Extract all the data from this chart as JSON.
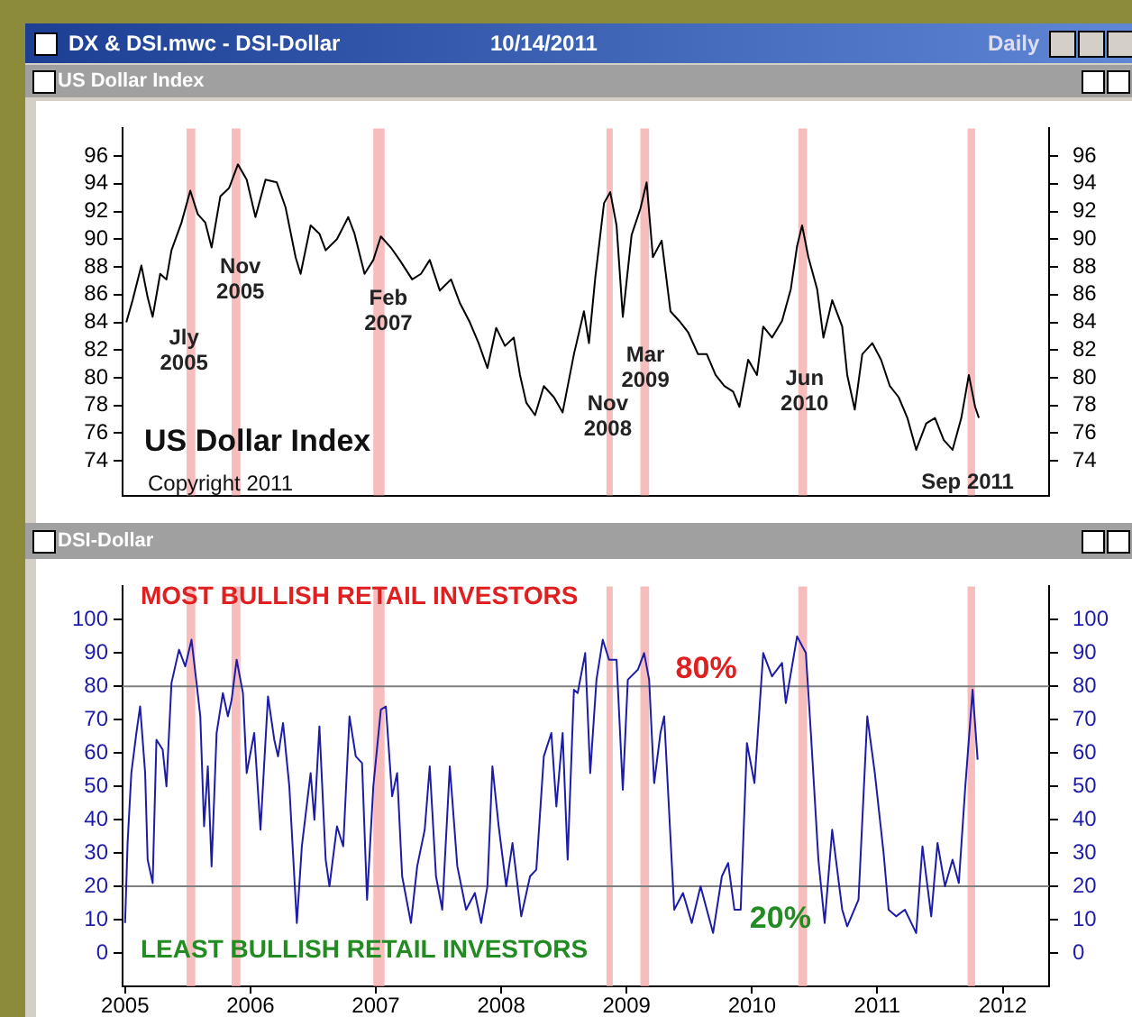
{
  "chart_data": [
    {
      "type": "line",
      "title": "DX & DSI.mwc - DSI-Dollar",
      "subtitle": "US Dollar Index",
      "tick_labels": "y",
      "xlim": [
        2004.98,
        2012.37
      ],
      "ylim": [
        71.5,
        98
      ],
      "yticks": [
        74,
        76,
        78,
        80,
        82,
        84,
        86,
        88,
        90,
        92,
        94,
        96
      ],
      "y2lim": [
        71.5,
        98
      ],
      "y2ticks": [
        74,
        76,
        78,
        80,
        82,
        84,
        86,
        88,
        90,
        92,
        94,
        96
      ],
      "bands": [
        {
          "axis": "x",
          "from": 2005.49,
          "to": 2005.56,
          "color": "#f4a7a7"
        },
        {
          "axis": "x",
          "from": 2005.85,
          "to": 2005.92,
          "color": "#f4a7a7"
        },
        {
          "axis": "x",
          "from": 2006.98,
          "to": 2007.07,
          "color": "#f4a7a7"
        },
        {
          "axis": "x",
          "from": 2008.84,
          "to": 2008.89,
          "color": "#f4a7a7"
        },
        {
          "axis": "x",
          "from": 2009.11,
          "to": 2009.18,
          "color": "#f4a7a7"
        },
        {
          "axis": "x",
          "from": 2010.37,
          "to": 2010.44,
          "color": "#f4a7a7"
        },
        {
          "axis": "x",
          "from": 2011.72,
          "to": 2011.78,
          "color": "#f4a7a7"
        }
      ],
      "annotations": [
        "10/14/2011",
        "Daily",
        "US Dollar Index",
        "Copyright 2011",
        {
          "text": "Jly\n2005",
          "x": 2005.47,
          "y": 81.9
        },
        {
          "text": "Nov\n2005",
          "x": 2005.92,
          "y": 87.1
        },
        {
          "text": "Feb\n2007",
          "x": 2007.1,
          "y": 84.8
        },
        {
          "text": "Nov\n2008",
          "x": 2008.85,
          "y": 77.2
        },
        {
          "text": "Mar\n2009",
          "x": 2009.15,
          "y": 80.7
        },
        {
          "text": "Jun\n2010",
          "x": 2010.42,
          "y": 79
        },
        {
          "text": "Sep 2011",
          "x": 2011.72,
          "y": 72.4
        }
      ],
      "series": [
        {
          "color": "#000000",
          "x": [
            2005.01,
            2005.06,
            2005.13,
            2005.18,
            2005.22,
            2005.28,
            2005.33,
            2005.37,
            2005.45,
            2005.52,
            2005.58,
            2005.64,
            2005.69,
            2005.76,
            2005.83,
            2005.9,
            2005.97,
            2006.04,
            2006.12,
            2006.21,
            2006.28,
            2006.36,
            2006.4,
            2006.48,
            2006.55,
            2006.6,
            2006.69,
            2006.78,
            2006.83,
            2006.91,
            2006.98,
            2007.04,
            2007.12,
            2007.19,
            2007.29,
            2007.36,
            2007.43,
            2007.51,
            2007.6,
            2007.67,
            2007.75,
            2007.82,
            2007.89,
            2007.96,
            2008.03,
            2008.1,
            2008.15,
            2008.2,
            2008.27,
            2008.34,
            2008.42,
            2008.49,
            2008.58,
            2008.66,
            2008.7,
            2008.75,
            2008.82,
            2008.87,
            2008.92,
            2008.97,
            2009.04,
            2009.11,
            2009.16,
            2009.21,
            2009.28,
            2009.35,
            2009.42,
            2009.49,
            2009.57,
            2009.64,
            2009.71,
            2009.78,
            2009.85,
            2009.9,
            2009.97,
            2010.04,
            2010.09,
            2010.16,
            2010.24,
            2010.31,
            2010.36,
            2010.4,
            2010.45,
            2010.52,
            2010.57,
            2010.64,
            2010.72,
            2010.76,
            2010.82,
            2010.88,
            2010.96,
            2011.03,
            2011.1,
            2011.17,
            2011.24,
            2011.31,
            2011.39,
            2011.46,
            2011.53,
            2011.6,
            2011.67,
            2011.73,
            2011.78,
            2011.81
          ],
          "values": [
            84.0,
            85.6,
            88.1,
            85.8,
            84.4,
            87.5,
            87.1,
            89.2,
            91.2,
            93.5,
            91.8,
            91.2,
            89.4,
            93.1,
            93.7,
            95.4,
            94.3,
            91.6,
            94.3,
            94.1,
            92.3,
            88.7,
            87.5,
            91.0,
            90.4,
            89.2,
            90.0,
            91.6,
            90.4,
            87.5,
            88.5,
            90.2,
            89.4,
            88.5,
            87.1,
            87.5,
            88.5,
            86.3,
            87.1,
            85.4,
            84.0,
            82.5,
            80.7,
            83.6,
            82.3,
            82.9,
            80.2,
            78.2,
            77.3,
            79.4,
            78.6,
            77.5,
            81.7,
            84.8,
            82.5,
            87.2,
            92.6,
            93.4,
            91.0,
            84.4,
            90.3,
            92.2,
            94.1,
            88.7,
            89.9,
            84.8,
            84.1,
            83.3,
            81.7,
            81.7,
            80.2,
            79.4,
            79.0,
            77.9,
            81.3,
            80.2,
            83.7,
            82.9,
            84.1,
            86.4,
            89.5,
            91.0,
            88.7,
            86.4,
            82.9,
            85.6,
            83.7,
            80.2,
            77.7,
            81.7,
            82.5,
            81.3,
            79.4,
            78.6,
            77.1,
            74.8,
            76.7,
            77.1,
            75.5,
            74.8,
            77.1,
            80.2,
            77.9,
            77.1
          ]
        }
      ]
    },
    {
      "type": "line",
      "title": "DSI-Dollar",
      "xlim": [
        2004.98,
        2012.37
      ],
      "xticks": [
        2005,
        2006,
        2007,
        2008,
        2009,
        2010,
        2011,
        2012
      ],
      "ylim": [
        -10,
        110
      ],
      "yticks": [
        0,
        10,
        20,
        30,
        40,
        50,
        60,
        70,
        80,
        90,
        100
      ],
      "y2lim": [
        -10,
        110
      ],
      "y2ticks": [
        0,
        10,
        20,
        30,
        40,
        50,
        60,
        70,
        80,
        90,
        100
      ],
      "ref_lines": [
        {
          "axis": "y",
          "value": 80,
          "label": "80%",
          "color": "#808080"
        },
        {
          "axis": "y",
          "value": 20,
          "label": "20%",
          "color": "#808080"
        }
      ],
      "bands": [
        {
          "axis": "x",
          "from": 2005.49,
          "to": 2005.56,
          "color": "#f4a7a7"
        },
        {
          "axis": "x",
          "from": 2005.85,
          "to": 2005.92,
          "color": "#f4a7a7"
        },
        {
          "axis": "x",
          "from": 2006.98,
          "to": 2007.07,
          "color": "#f4a7a7"
        },
        {
          "axis": "x",
          "from": 2008.84,
          "to": 2008.89,
          "color": "#f4a7a7"
        },
        {
          "axis": "x",
          "from": 2009.11,
          "to": 2009.18,
          "color": "#f4a7a7"
        },
        {
          "axis": "x",
          "from": 2010.37,
          "to": 2010.44,
          "color": "#f4a7a7"
        },
        {
          "axis": "x",
          "from": 2011.72,
          "to": 2011.78,
          "color": "#f4a7a7"
        }
      ],
      "annotations": [
        "MOST BULLISH RETAIL INVESTORS",
        "LEAST BULLISH RETAIL INVESTORS"
      ],
      "series": [
        {
          "color": "#1c1ca8",
          "x": [
            2005.0,
            2005.02,
            2005.05,
            2005.09,
            2005.12,
            2005.16,
            2005.18,
            2005.22,
            2005.25,
            2005.3,
            2005.33,
            2005.37,
            2005.43,
            2005.48,
            2005.53,
            2005.57,
            2005.6,
            2005.63,
            2005.66,
            2005.69,
            2005.73,
            2005.78,
            2005.82,
            2005.85,
            2005.89,
            2005.94,
            2005.97,
            2006.03,
            2006.08,
            2006.14,
            2006.19,
            2006.22,
            2006.26,
            2006.31,
            2006.37,
            2006.41,
            2006.48,
            2006.51,
            2006.55,
            2006.6,
            2006.63,
            2006.69,
            2006.74,
            2006.79,
            2006.84,
            2006.89,
            2006.93,
            2006.98,
            2007.04,
            2007.08,
            2007.13,
            2007.17,
            2007.21,
            2007.28,
            2007.33,
            2007.39,
            2007.43,
            2007.48,
            2007.53,
            2007.59,
            2007.65,
            2007.72,
            2007.79,
            2007.84,
            2007.89,
            2007.93,
            2007.98,
            2008.04,
            2008.09,
            2008.16,
            2008.23,
            2008.28,
            2008.34,
            2008.4,
            2008.44,
            2008.49,
            2008.53,
            2008.58,
            2008.61,
            2008.67,
            2008.71,
            2008.76,
            2008.81,
            2008.86,
            2008.92,
            2008.97,
            2009.01,
            2009.09,
            2009.14,
            2009.18,
            2009.22,
            2009.27,
            2009.3,
            2009.38,
            2009.45,
            2009.52,
            2009.59,
            2009.69,
            2009.76,
            2009.81,
            2009.86,
            2009.91,
            2009.96,
            2010.02,
            2010.09,
            2010.16,
            2010.24,
            2010.27,
            2010.36,
            2010.43,
            2010.47,
            2010.53,
            2010.58,
            2010.64,
            2010.72,
            2010.76,
            2010.85,
            2010.92,
            2010.98,
            2011.05,
            2011.09,
            2011.15,
            2011.22,
            2011.31,
            2011.36,
            2011.43,
            2011.48,
            2011.54,
            2011.6,
            2011.65,
            2011.7,
            2011.76,
            2011.8
          ],
          "values": [
            9,
            33,
            54,
            66,
            74,
            54,
            28,
            21,
            64,
            61,
            50,
            81,
            91,
            86,
            94,
            81,
            71,
            38,
            56,
            26,
            66,
            78,
            71,
            76,
            88,
            78,
            54,
            66,
            37,
            77,
            64,
            59,
            69,
            50,
            9,
            32,
            54,
            40,
            68,
            28,
            20,
            38,
            32,
            71,
            59,
            57,
            16,
            50,
            73,
            74,
            47,
            54,
            23,
            9,
            26,
            37,
            56,
            23,
            13,
            56,
            26,
            13,
            18,
            9,
            20,
            56,
            38,
            20,
            33,
            11,
            23,
            25,
            59,
            66,
            44,
            66,
            28,
            79,
            78,
            90,
            54,
            82,
            94,
            88,
            88,
            49,
            82,
            85,
            90,
            82,
            51,
            66,
            71,
            13,
            18,
            9,
            20,
            6,
            23,
            27,
            13,
            13,
            63,
            51,
            90,
            83,
            87,
            75,
            95,
            90,
            66,
            28,
            9,
            37,
            13,
            8,
            16,
            71,
            54,
            30,
            13,
            11,
            13,
            6,
            32,
            11,
            33,
            20,
            28,
            21,
            49,
            79,
            58
          ]
        }
      ]
    }
  ]
}
